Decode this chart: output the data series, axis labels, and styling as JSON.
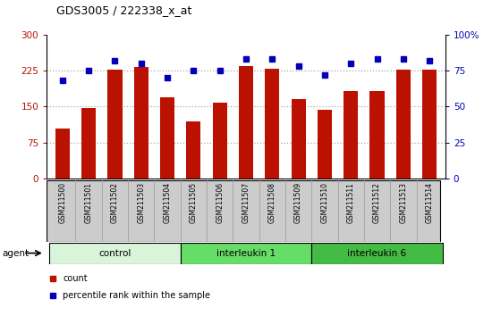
{
  "title": "GDS3005 / 222338_x_at",
  "samples": [
    "GSM211500",
    "GSM211501",
    "GSM211502",
    "GSM211503",
    "GSM211504",
    "GSM211505",
    "GSM211506",
    "GSM211507",
    "GSM211508",
    "GSM211509",
    "GSM211510",
    "GSM211511",
    "GSM211512",
    "GSM211513",
    "GSM211514"
  ],
  "counts": [
    105,
    148,
    228,
    232,
    170,
    120,
    158,
    234,
    230,
    165,
    143,
    182,
    183,
    228,
    228
  ],
  "percentiles": [
    68,
    75,
    82,
    80,
    70,
    75,
    75,
    83,
    83,
    78,
    72,
    80,
    83,
    83,
    82
  ],
  "groups": [
    {
      "label": "control",
      "start": 0,
      "end": 4,
      "color": "#d9f5d9"
    },
    {
      "label": "interleukin 1",
      "start": 5,
      "end": 9,
      "color": "#66dd66"
    },
    {
      "label": "interleukin 6",
      "start": 10,
      "end": 14,
      "color": "#44bb44"
    }
  ],
  "ylim_left": [
    0,
    300
  ],
  "ylim_right": [
    0,
    100
  ],
  "yticks_left": [
    0,
    75,
    150,
    225,
    300
  ],
  "yticks_right": [
    0,
    25,
    50,
    75,
    100
  ],
  "ytick_labels_left": [
    "0",
    "75",
    "150",
    "225",
    "300"
  ],
  "ytick_labels_right": [
    "0",
    "25",
    "50",
    "75",
    "100%"
  ],
  "bar_color": "#bb1100",
  "dot_color": "#0000bb",
  "bg_color": "#ffffff",
  "plot_bg_color": "#ffffff",
  "grid_color": "#aaaaaa",
  "legend_items": [
    {
      "label": "count",
      "color": "#bb1100"
    },
    {
      "label": "percentile rank within the sample",
      "color": "#0000bb"
    }
  ],
  "agent_label": "agent",
  "sample_box_color": "#cccccc",
  "sample_box_border": "#999999"
}
